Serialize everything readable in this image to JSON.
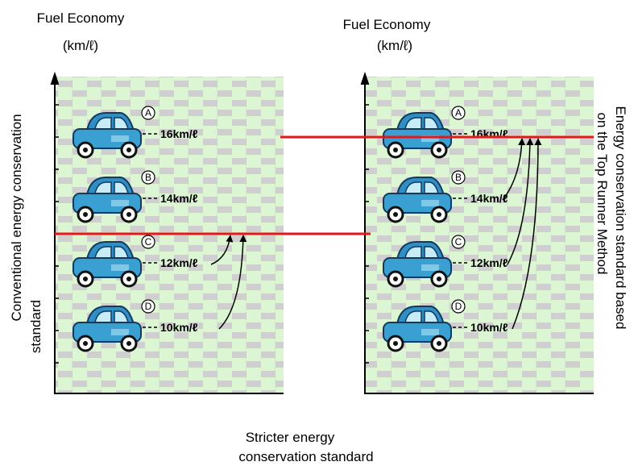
{
  "left_panel": {
    "axis_title": "Fuel Economy",
    "unit": "(km/ℓ)",
    "side_label": [
      "Conventional energy conservation",
      "standard"
    ],
    "cars": [
      {
        "label": "A",
        "value": "16km/ℓ"
      },
      {
        "label": "B",
        "value": "14km/ℓ"
      },
      {
        "label": "C",
        "value": "12km/ℓ"
      },
      {
        "label": "D",
        "value": "10km/ℓ"
      }
    ]
  },
  "right_panel": {
    "axis_title": "Fuel Economy",
    "unit": "(km/ℓ)",
    "side_label": [
      "Energy conservation standard based",
      "on the Top Runner Method"
    ],
    "cars": [
      {
        "label": "A",
        "value": "16km/ℓ"
      },
      {
        "label": "B",
        "value": "14km/ℓ"
      },
      {
        "label": "C",
        "value": "12km/ℓ"
      },
      {
        "label": "D",
        "value": "10km/ℓ"
      }
    ]
  },
  "bottom_label": [
    "Stricter energy",
    "conservation standard"
  ]
}
